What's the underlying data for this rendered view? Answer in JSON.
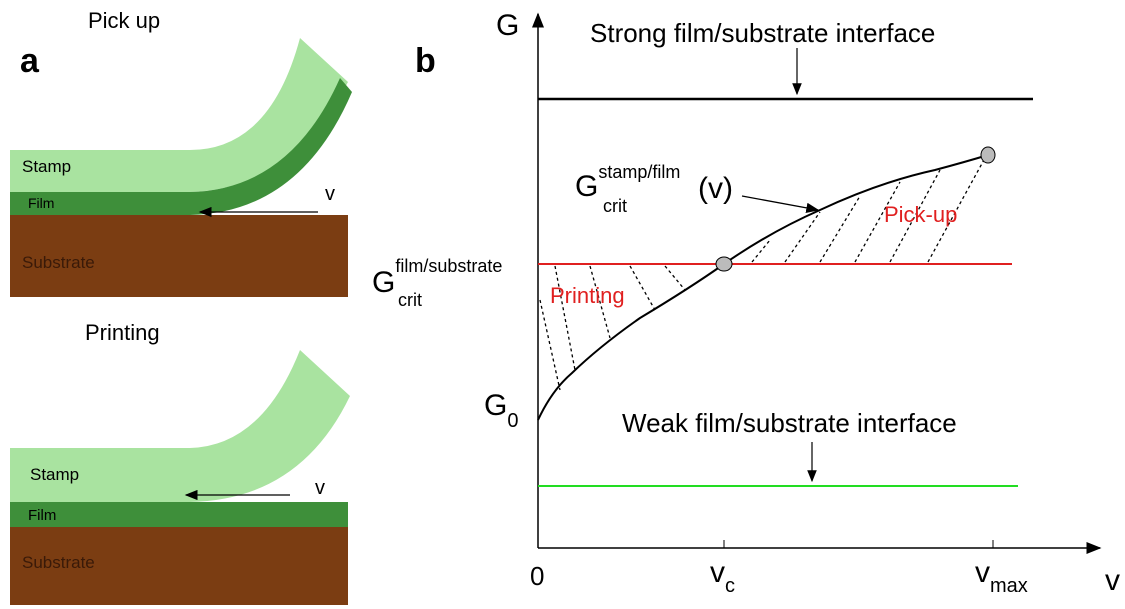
{
  "panel_a": {
    "label": "a",
    "pick_up": {
      "title": "Pick up",
      "stamp": "Stamp",
      "film": "Film",
      "substrate": "Substrate",
      "velocity": "v"
    },
    "printing": {
      "title": "Printing",
      "stamp": "Stamp",
      "film": "Film",
      "substrate": "Substrate",
      "velocity": "v"
    }
  },
  "panel_b": {
    "label": "b",
    "y_axis": "G",
    "x_axis": "v",
    "origin": "0",
    "strong": "Strong film/substrate interface",
    "weak": "Weak film/substrate interface",
    "g_crit_stamp": {
      "symbol": "G",
      "sub": "crit",
      "sup": "stamp/film",
      "arg": "(v)"
    },
    "g_crit_substrate": {
      "symbol": "G",
      "sub": "crit",
      "sup": "film/substrate"
    },
    "g0": {
      "symbol": "G",
      "sub": "0"
    },
    "vc": {
      "symbol": "v",
      "sub": "c"
    },
    "vmax": {
      "symbol": "v",
      "sub": "max"
    },
    "pick_up_region": "Pick-up",
    "printing_region": "Printing"
  }
}
